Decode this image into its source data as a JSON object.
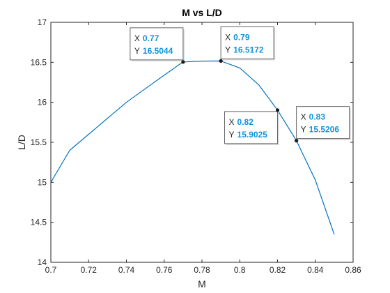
{
  "chart_data": {
    "type": "line",
    "title": "M vs L/D",
    "xlabel": "M",
    "ylabel": "L/D",
    "xlim": [
      0.7,
      0.86
    ],
    "ylim": [
      14,
      17
    ],
    "x_ticks": [
      "0.7",
      "0.72",
      "0.74",
      "0.76",
      "0.78",
      "0.8",
      "0.82",
      "0.84",
      "0.86"
    ],
    "y_ticks": [
      "14",
      "14.5",
      "15",
      "15.5",
      "16",
      "16.5",
      "17"
    ],
    "grid": false,
    "series": [
      {
        "x": [
          0.7,
          0.71,
          0.72,
          0.73,
          0.74,
          0.75,
          0.76,
          0.77,
          0.78,
          0.79,
          0.8,
          0.81,
          0.82,
          0.83,
          0.84,
          0.85
        ],
        "y": [
          15.0,
          15.4,
          15.6,
          15.8,
          16.0,
          16.17,
          16.34,
          16.5044,
          16.515,
          16.5172,
          16.43,
          16.22,
          15.9025,
          15.5206,
          15.03,
          14.35
        ]
      }
    ],
    "annotations": [
      {
        "x_label": "X",
        "x": "0.77",
        "y_label": "Y",
        "y": "16.5044",
        "px": 0.77,
        "py": 16.5044,
        "placement": "upper-left"
      },
      {
        "x_label": "X",
        "x": "0.79",
        "y_label": "Y",
        "y": "16.5172",
        "px": 0.79,
        "py": 16.5172,
        "placement": "upper-right"
      },
      {
        "x_label": "X",
        "x": "0.82",
        "y_label": "Y",
        "y": "15.9025",
        "px": 0.82,
        "py": 15.9025,
        "placement": "lower-left"
      },
      {
        "x_label": "X",
        "x": "0.83",
        "y_label": "Y",
        "y": "15.5206",
        "px": 0.83,
        "py": 15.5206,
        "placement": "upper-right"
      }
    ],
    "colors": {
      "line": "#0072bd",
      "axes": "#262626",
      "tip_value": "#0f94dc",
      "marker": "#1a1a1a"
    }
  }
}
